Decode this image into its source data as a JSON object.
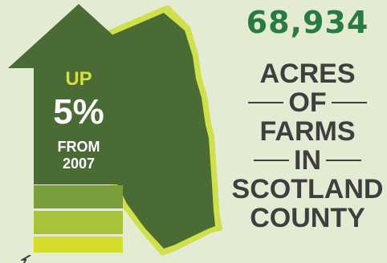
{
  "colors": {
    "background": "#e3ecd3",
    "county_fill": "#4a6b33",
    "county_outline": "#cfe04a",
    "arrow_fill": "#4a6b33",
    "bar_1": "#7a9e3c",
    "bar_2": "#a6c33a",
    "bar_3": "#d2dd2e",
    "headline_green": "#2a7a43",
    "text_dark": "#3f3f3f"
  },
  "arrow": {
    "direction": "up",
    "label_up": "UP",
    "percent": "5%",
    "label_from": "FROM",
    "year": "2007"
  },
  "headline": {
    "number": "68,934",
    "line1": "ACRES",
    "line2": "OF",
    "line3": "FARMS",
    "line4": "IN",
    "line5": "SCOTLAND",
    "line6": "COUNTY"
  },
  "graphic": {
    "map_icon": "county-map-icon"
  }
}
